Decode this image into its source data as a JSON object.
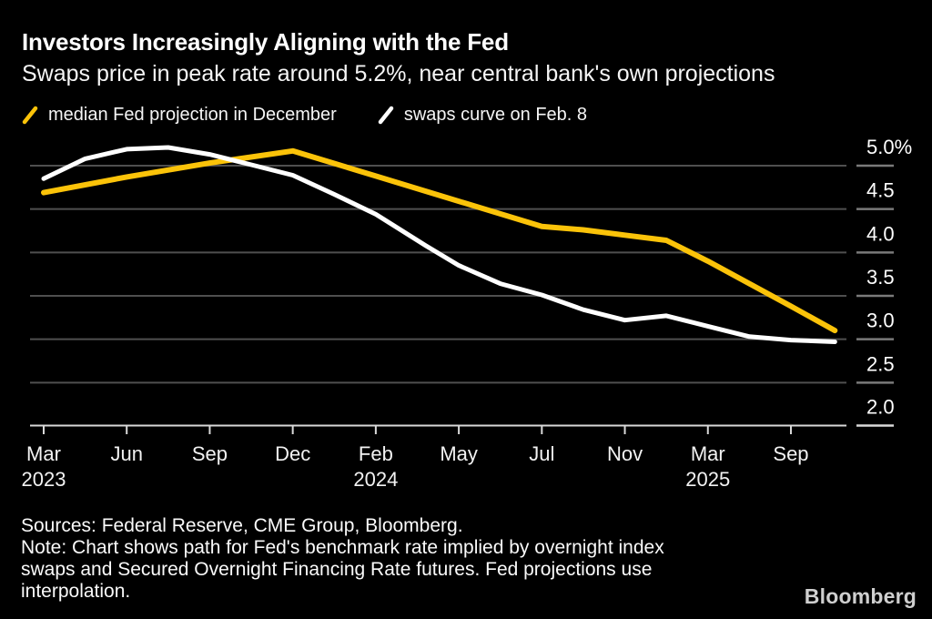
{
  "chart_data": {
    "type": "line",
    "title": "Investors Increasingly Aligning with the Fed",
    "subtitle": "Swaps price in peak rate around 5.2%, near central bank's own projections",
    "ylabel": "",
    "xlabel": "",
    "ylim": [
      2.0,
      5.35
    ],
    "grid": "horizontal",
    "legend_position": "top-left",
    "y_axis": {
      "side": "right",
      "ticks": [
        {
          "value": 5.0,
          "label": "5.0%"
        },
        {
          "value": 4.5,
          "label": "4.5"
        },
        {
          "value": 4.0,
          "label": "4.0"
        },
        {
          "value": 3.5,
          "label": "3.5"
        },
        {
          "value": 3.0,
          "label": "3.0"
        },
        {
          "value": 2.5,
          "label": "2.5"
        },
        {
          "value": 2.0,
          "label": "2.0"
        }
      ]
    },
    "x_axis": {
      "ticks": [
        {
          "month": "Mar",
          "year": "2023"
        },
        {
          "month": "Jun",
          "year": ""
        },
        {
          "month": "Sep",
          "year": ""
        },
        {
          "month": "Dec",
          "year": ""
        },
        {
          "month": "Feb",
          "year": "2024"
        },
        {
          "month": "May",
          "year": ""
        },
        {
          "month": "Jul",
          "year": ""
        },
        {
          "month": "Nov",
          "year": ""
        },
        {
          "month": "Mar",
          "year": "2025"
        },
        {
          "month": "Sep",
          "year": ""
        }
      ]
    },
    "series": [
      {
        "name": "median Fed projection in December",
        "color": "#fbc309",
        "stroke_width": 6,
        "points": [
          [
            0,
            4.69
          ],
          [
            1,
            4.87
          ],
          [
            2,
            5.03
          ],
          [
            3,
            5.17
          ],
          [
            4,
            4.88
          ],
          [
            5,
            4.59
          ],
          [
            6,
            4.3
          ],
          [
            6.5,
            4.26
          ],
          [
            7,
            4.2
          ],
          [
            7.5,
            4.14
          ],
          [
            8,
            3.9
          ],
          [
            8.5,
            3.64
          ],
          [
            9,
            3.38
          ],
          [
            9.53,
            3.1
          ]
        ]
      },
      {
        "name": "swaps curve on Feb. 8",
        "color": "#ffffff",
        "stroke_width": 5,
        "points": [
          [
            0,
            4.85
          ],
          [
            0.5,
            5.08
          ],
          [
            1,
            5.19
          ],
          [
            1.5,
            5.21
          ],
          [
            2,
            5.13
          ],
          [
            2.5,
            5.01
          ],
          [
            3,
            4.89
          ],
          [
            3.5,
            4.67
          ],
          [
            4,
            4.44
          ],
          [
            4.6,
            4.08
          ],
          [
            5,
            3.85
          ],
          [
            5.5,
            3.64
          ],
          [
            6,
            3.51
          ],
          [
            6.5,
            3.34
          ],
          [
            7,
            3.22
          ],
          [
            7.5,
            3.27
          ],
          [
            8,
            3.15
          ],
          [
            8.5,
            3.03
          ],
          [
            9,
            2.99
          ],
          [
            9.53,
            2.97
          ]
        ]
      }
    ],
    "colors": {
      "background": "#000000",
      "gridline": "#4f4f4f",
      "axis_line": "#d9d9d9",
      "right_tick": "#7a7a7a",
      "label_text": "#f2f2f2"
    }
  },
  "footer": {
    "sources": "Sources: Federal Reserve, CME Group, Bloomberg.",
    "note_lines": [
      "Note: Chart shows path for Fed's benchmark rate implied by overnight index",
      "swaps and Secured Overnight Financing Rate futures. Fed projections use",
      "interpolation."
    ]
  },
  "branding": {
    "logo": "Bloomberg"
  }
}
